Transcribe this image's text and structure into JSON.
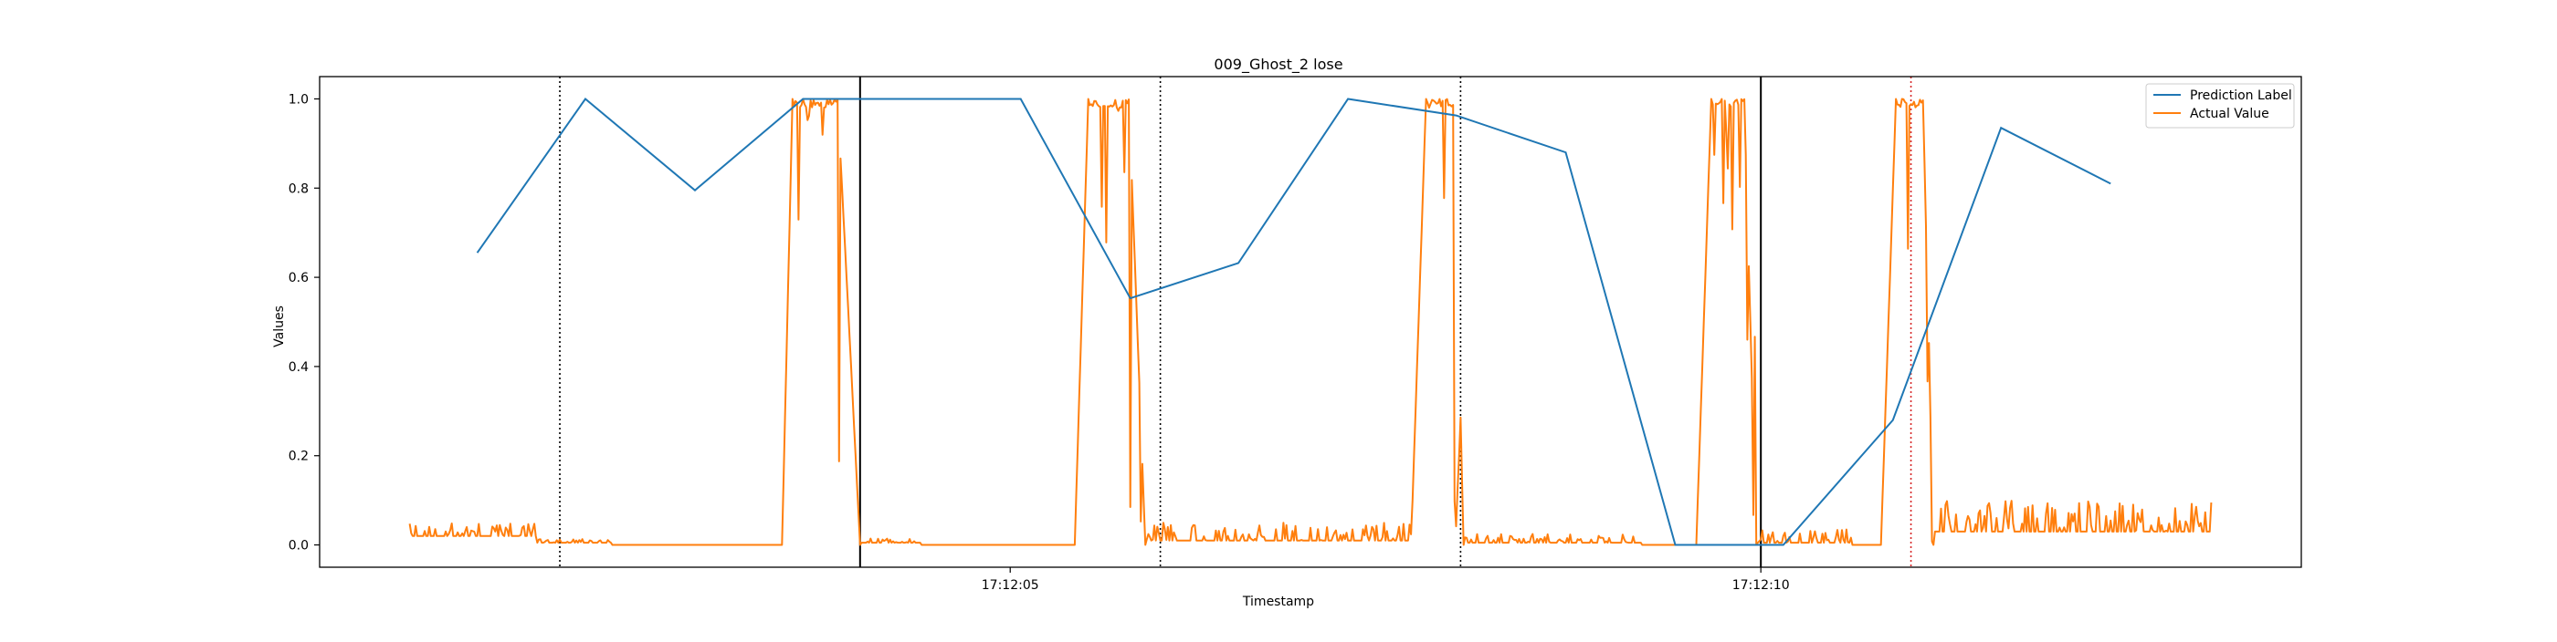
{
  "chart_data": {
    "type": "line",
    "title": "009_Ghost_2 lose",
    "xlabel": "Timestamp",
    "ylabel": "Values",
    "x_range_seconds": [
      0,
      13.2
    ],
    "ylim": [
      -0.05,
      1.05
    ],
    "x_ticks": [
      {
        "t": 4.6,
        "label": "17:12:05"
      },
      {
        "t": 9.6,
        "label": "17:12:10"
      }
    ],
    "y_ticks": [
      {
        "v": 0.0,
        "label": "0.0"
      },
      {
        "v": 0.2,
        "label": "0.2"
      },
      {
        "v": 0.4,
        "label": "0.4"
      },
      {
        "v": 0.6,
        "label": "0.6"
      },
      {
        "v": 0.8,
        "label": "0.8"
      },
      {
        "v": 1.0,
        "label": "1.0"
      }
    ],
    "grid": false,
    "legend": {
      "position": "top-right",
      "entries": [
        {
          "label": "Prediction Label",
          "color": "#1f77b4"
        },
        {
          "label": "Actual Value",
          "color": "#ff7f0e"
        }
      ]
    },
    "vlines": [
      {
        "t": 1.6,
        "color": "#000000",
        "style": "dotted"
      },
      {
        "t": 3.6,
        "color": "#000000",
        "style": "solid"
      },
      {
        "t": 5.6,
        "color": "#000000",
        "style": "dotted"
      },
      {
        "t": 7.6,
        "color": "#000000",
        "style": "dotted"
      },
      {
        "t": 9.6,
        "color": "#000000",
        "style": "solid"
      },
      {
        "t": 10.6,
        "color": "#d62728",
        "style": "dotted"
      }
    ],
    "series": [
      {
        "name": "Prediction Label",
        "color": "#1f77b4",
        "x": [
          1.05,
          1.77,
          2.5,
          3.22,
          3.95,
          4.67,
          5.4,
          6.12,
          6.85,
          7.57,
          8.3,
          9.03,
          9.75,
          10.48,
          11.2,
          11.93
        ],
        "y": [
          0.655,
          1.0,
          0.795,
          1.0,
          1.0,
          1.0,
          0.553,
          0.632,
          1.0,
          0.963,
          0.88,
          0.0,
          0.0,
          0.28,
          0.935,
          0.81
        ]
      },
      {
        "name": "Actual Value",
        "color": "#ff7f0e",
        "pulses": [
          {
            "rise": 3.08,
            "top_start": 3.15,
            "top_end": 3.45,
            "fall_end": 3.6
          },
          {
            "rise": 5.03,
            "top_start": 5.12,
            "top_end": 5.39,
            "fall_end": 5.5
          },
          {
            "rise": 7.27,
            "top_start": 7.37,
            "top_end": 7.55,
            "fall_end": 7.62
          },
          {
            "rise": 9.17,
            "top_start": 9.27,
            "top_end": 9.49,
            "fall_end": 9.57
          },
          {
            "rise": 10.4,
            "top_start": 10.5,
            "top_end": 10.68,
            "fall_end": 10.75
          }
        ],
        "noise_segments": [
          {
            "from": 0.6,
            "to": 1.45,
            "base": 0.02,
            "amp": 0.03
          },
          {
            "from": 1.45,
            "to": 1.95,
            "base": 0.005,
            "amp": 0.008
          },
          {
            "from": 3.6,
            "to": 4.0,
            "base": 0.005,
            "amp": 0.01
          },
          {
            "from": 5.5,
            "to": 7.27,
            "base": 0.01,
            "amp": 0.04
          },
          {
            "from": 7.62,
            "to": 8.8,
            "base": 0.005,
            "amp": 0.02
          },
          {
            "from": 9.57,
            "to": 10.2,
            "base": 0.005,
            "amp": 0.03
          },
          {
            "from": 10.75,
            "to": 12.6,
            "base": 0.03,
            "amp": 0.07
          }
        ]
      }
    ]
  }
}
